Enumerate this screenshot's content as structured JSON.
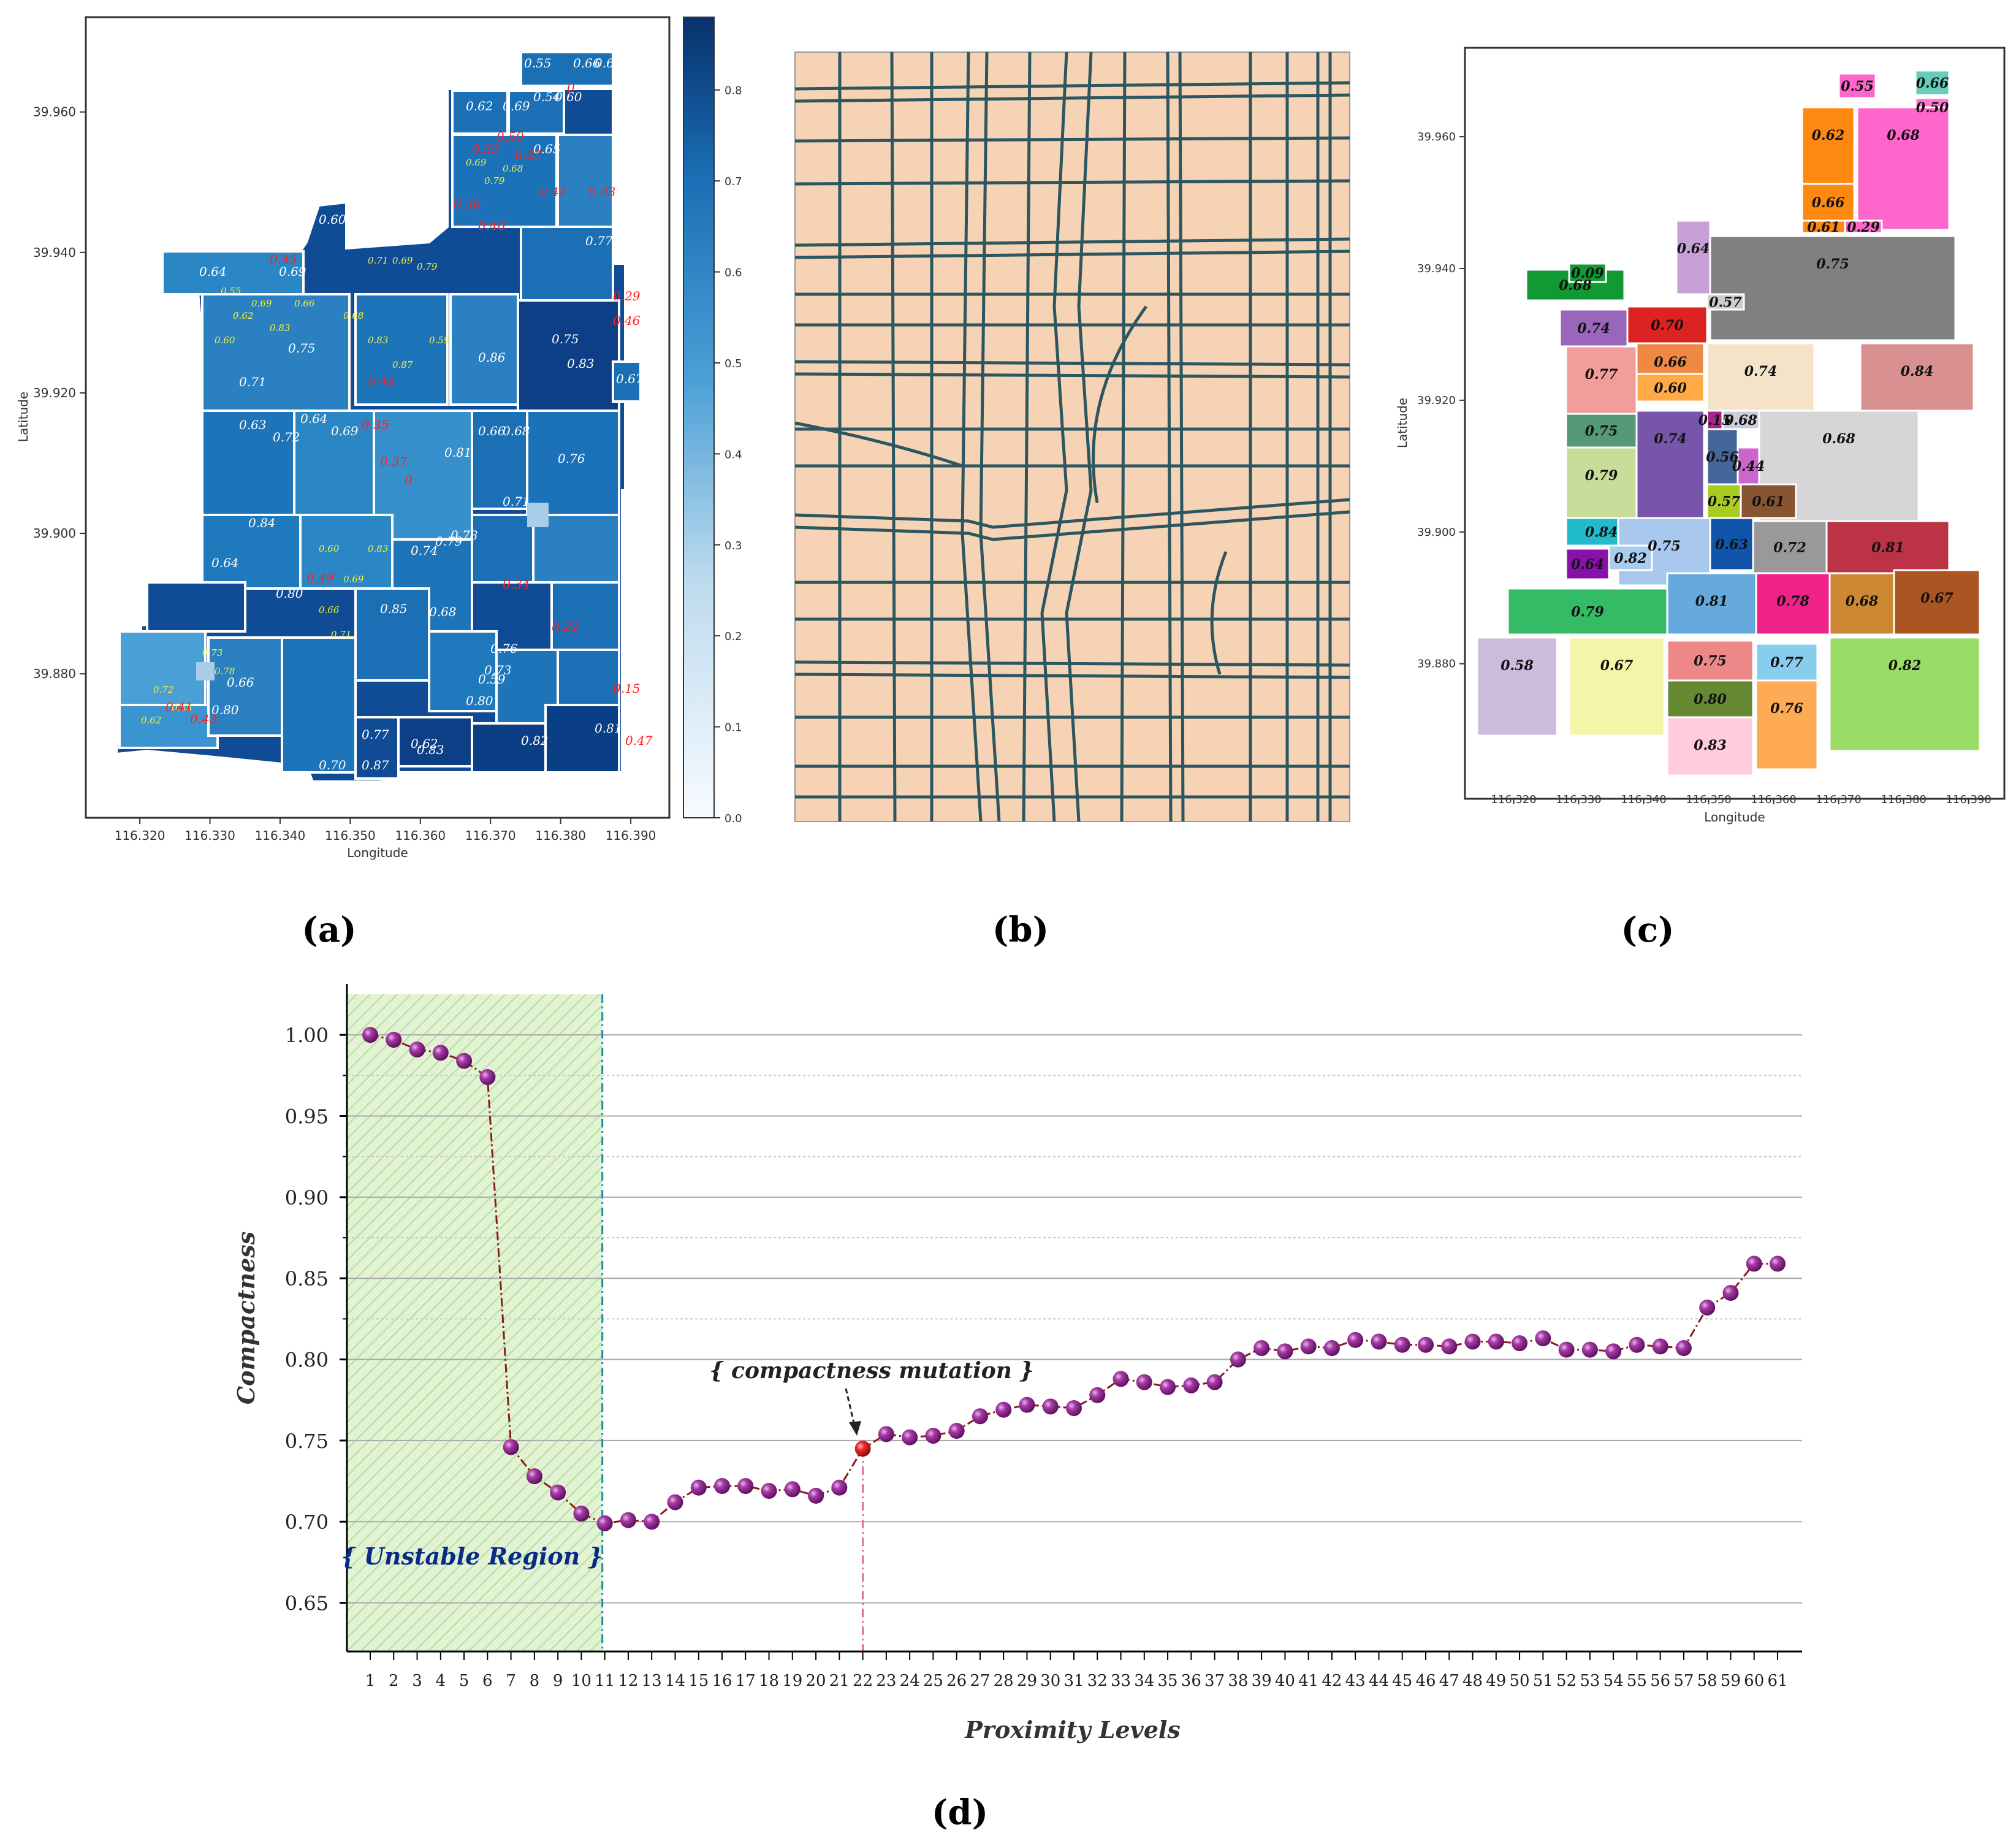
{
  "panels": {
    "a": {
      "caption": "(a)",
      "xlabel": "Longitude",
      "ylabel": "Latitude",
      "x_ticks": [
        "116.320",
        "116.330",
        "116.340",
        "116.350",
        "116.360",
        "116.370",
        "116.380",
        "116.390"
      ],
      "y_ticks": [
        "39.960",
        "39.940",
        "39.920",
        "39.900",
        "39.880"
      ],
      "colorbar_ticks": [
        "0.8",
        "0.7",
        "0.6",
        "0.5",
        "0.4",
        "0.3",
        "0.2",
        "0.1",
        "0.0"
      ],
      "labels": [
        "0.55",
        "0.66",
        "0.61",
        "0.62",
        "0.69",
        "0.54",
        "0.60",
        "0.64",
        "0.60",
        "0.69",
        "0.65",
        "0.77",
        "0.83",
        "0.67",
        "0.76",
        "0.66",
        "0.68",
        "0.64",
        "0.71",
        "0.75",
        "0.64",
        "0.69",
        "0.81",
        "0.74",
        "0.79",
        "0.80",
        "0.85",
        "0.68",
        "0.80",
        "0.77",
        "0.83",
        "0.82",
        "0.81",
        "0.87",
        "0.70",
        "0.62",
        "0.59",
        "0.66",
        "0.80",
        "0.73",
        "0.76",
        "0.71",
        "0.78",
        "0.86",
        "0.63",
        "0.72",
        "0.75",
        "0.84"
      ],
      "red_labels": [
        "0",
        "0.50",
        "0.39",
        "0.27",
        "0.42",
        "0.33",
        "0.29",
        "0.46",
        "0.36",
        "0.40",
        "0.45",
        "0.48",
        "0.35",
        "0.37",
        "0",
        "0.49",
        "0.34",
        "0.22",
        "0.15",
        "0.41",
        "0.43",
        "0.47"
      ],
      "colors": {
        "dark": "#0a3f86",
        "mid": "#1a6fb5",
        "light": "#4a9fd6",
        "pale": "#a9cde9"
      }
    },
    "b": {
      "caption": "(b)",
      "colors": {
        "background": "#f6d3b4",
        "road": "#2c5660"
      }
    },
    "c": {
      "caption": "(c)",
      "xlabel": "Longitude",
      "ylabel": "Latitude",
      "x_ticks": [
        "116.320",
        "116.330",
        "116.340",
        "116.350",
        "116.360",
        "116.370",
        "116.380",
        "116.390"
      ],
      "y_ticks": [
        "39.960",
        "39.940",
        "39.920",
        "39.900",
        "39.880"
      ],
      "regions": [
        {
          "label": "0.55",
          "color": "#ff66cc"
        },
        {
          "label": "0.66",
          "color": "#66ccbb"
        },
        {
          "label": "0.50",
          "color": "#ff77cc"
        },
        {
          "label": "0.62",
          "color": "#ff8811"
        },
        {
          "label": "0.66",
          "color": "#ff8811"
        },
        {
          "label": "0.68",
          "color": "#ff66cc"
        },
        {
          "label": "0.61",
          "color": "#ff8811"
        },
        {
          "label": "0.29",
          "color": "#ff66cc"
        },
        {
          "label": "0.64",
          "color": "#c6a0d6"
        },
        {
          "label": "0.68",
          "color": "#119933"
        },
        {
          "label": "0.09",
          "color": "#119933"
        },
        {
          "label": "0.75",
          "color": "#808080"
        },
        {
          "label": "0.74",
          "color": "#9966bb"
        },
        {
          "label": "0.70",
          "color": "#dd2222"
        },
        {
          "label": "0.57",
          "color": "#cccccc"
        },
        {
          "label": "0.77",
          "color": "#f29c9c"
        },
        {
          "label": "0.66",
          "color": "#ee8844"
        },
        {
          "label": "0.60",
          "color": "#ffaa44"
        },
        {
          "label": "0.74",
          "color": "#f5e3c8"
        },
        {
          "label": "0.84",
          "color": "#d89090"
        },
        {
          "label": "0.75",
          "color": "#559977"
        },
        {
          "label": "0.74",
          "color": "#7755aa"
        },
        {
          "label": "0.15",
          "color": "#aa2288"
        },
        {
          "label": "0.68",
          "color": "#ccccdd"
        },
        {
          "label": "0.68",
          "color": "#d6d6d6"
        },
        {
          "label": "0.56",
          "color": "#446699"
        },
        {
          "label": "0.44",
          "color": "#cc66cc"
        },
        {
          "label": "0.79",
          "color": "#c8dd99"
        },
        {
          "label": "0.57",
          "color": "#aacc22"
        },
        {
          "label": "0.61",
          "color": "#885533"
        },
        {
          "label": "0.84",
          "color": "#22bbcc"
        },
        {
          "label": "0.75",
          "color": "#a8c8ee"
        },
        {
          "label": "0.63",
          "color": "#1155aa"
        },
        {
          "label": "0.72",
          "color": "#999999"
        },
        {
          "label": "0.81",
          "color": "#bb3344"
        },
        {
          "label": "0.64",
          "color": "#8811aa"
        },
        {
          "label": "0.82",
          "color": "#aaccee"
        },
        {
          "label": "0.79",
          "color": "#33bb66"
        },
        {
          "label": "0.81",
          "color": "#66aadd"
        },
        {
          "label": "0.78",
          "color": "#ee2288"
        },
        {
          "label": "0.68",
          "color": "#cc8833"
        },
        {
          "label": "0.67",
          "color": "#aa5522"
        },
        {
          "label": "0.58",
          "color": "#ccbbdd"
        },
        {
          "label": "0.67",
          "color": "#f5f5aa"
        },
        {
          "label": "0.75",
          "color": "#ee8888"
        },
        {
          "label": "0.77",
          "color": "#88ccee"
        },
        {
          "label": "0.80",
          "color": "#668833"
        },
        {
          "label": "0.76",
          "color": "#ffaa55"
        },
        {
          "label": "0.82",
          "color": "#99dd66"
        },
        {
          "label": "0.83",
          "color": "#ffccdd"
        }
      ]
    },
    "d": {
      "caption": "(d)",
      "unstable_region_label": "{ Unstable Region }",
      "mutation_label": "{ compactness mutation }"
    }
  },
  "chart_data": [
    {
      "type": "line",
      "title": "",
      "xlabel": "Proximity Levels",
      "ylabel": "Compactness",
      "x": [
        1,
        2,
        3,
        4,
        5,
        6,
        7,
        8,
        9,
        10,
        11,
        12,
        13,
        14,
        15,
        16,
        17,
        18,
        19,
        20,
        21,
        22,
        23,
        24,
        25,
        26,
        27,
        28,
        29,
        30,
        31,
        32,
        33,
        34,
        35,
        36,
        37,
        38,
        39,
        40,
        41,
        42,
        43,
        44,
        45,
        46,
        47,
        48,
        49,
        50,
        51,
        52,
        53,
        54,
        55,
        56,
        57,
        58,
        59,
        60,
        61
      ],
      "values": [
        1.0,
        0.997,
        0.991,
        0.989,
        0.984,
        0.974,
        0.746,
        0.728,
        0.718,
        0.705,
        0.699,
        0.701,
        0.7,
        0.712,
        0.721,
        0.722,
        0.722,
        0.719,
        0.72,
        0.716,
        0.721,
        0.745,
        0.754,
        0.752,
        0.753,
        0.756,
        0.765,
        0.769,
        0.772,
        0.771,
        0.77,
        0.778,
        0.788,
        0.786,
        0.783,
        0.784,
        0.786,
        0.8,
        0.807,
        0.805,
        0.808,
        0.807,
        0.812,
        0.811,
        0.809,
        0.809,
        0.808,
        0.811,
        0.811,
        0.81,
        0.813,
        0.806,
        0.806,
        0.805,
        0.809,
        0.808,
        0.807,
        0.832,
        0.841,
        0.859,
        0.859
      ],
      "highlight_index": 21,
      "highlight_x": 22,
      "unstable_region_end": 11,
      "ylim": [
        0.62,
        1.025
      ],
      "y_ticks": [
        "1.00",
        "0.95",
        "0.90",
        "0.85",
        "0.80",
        "0.75",
        "0.70",
        "0.65"
      ],
      "y_tick_values": [
        1.0,
        0.95,
        0.9,
        0.85,
        0.8,
        0.75,
        0.7,
        0.65
      ],
      "minor_grid_values": [
        0.975,
        0.925,
        0.875,
        0.825
      ],
      "colors": {
        "marker": "#7a1a7a",
        "highlight": "#e01818",
        "line": "#8b1a1a",
        "region": "#e2f3d3",
        "region_border": "#1a8fa0",
        "mutation_line": "#d86aa8"
      }
    }
  ]
}
